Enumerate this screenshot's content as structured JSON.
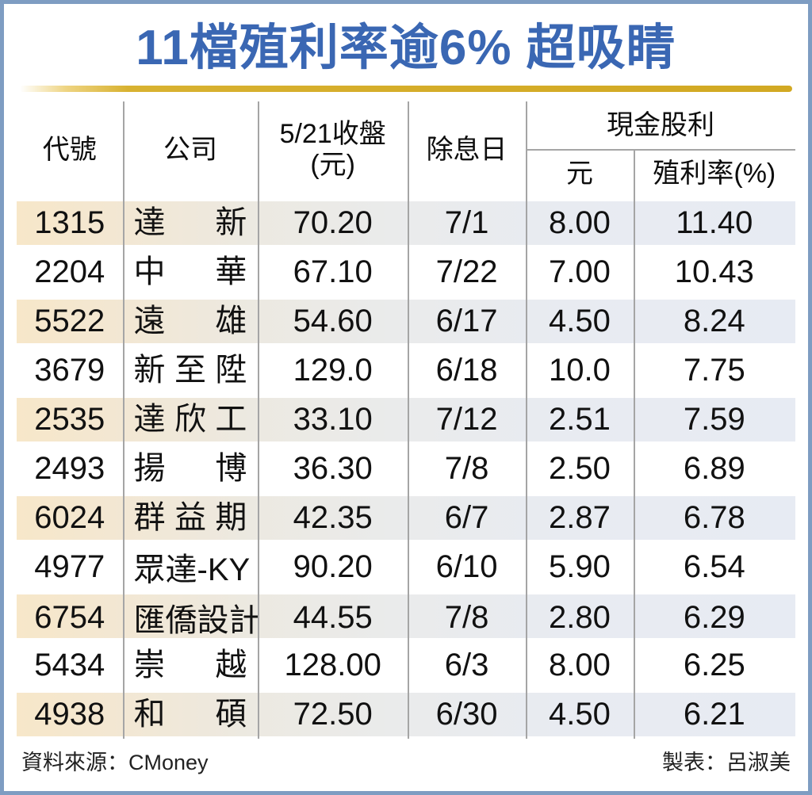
{
  "title": "11檔殖利率逾6% 超吸睛",
  "colors": {
    "title_blue": "#3a67b3",
    "gold_rule": "#d4ac28",
    "frame_border": "#7e9dc2",
    "shaded_row_left": "#f7e7c9",
    "shaded_row_right": "#e7ebf3",
    "grid_line": "#a5a5a5"
  },
  "table": {
    "headers": {
      "code": "代號",
      "company": "公司",
      "close_line1": "5/21收盤",
      "close_line2": "(元)",
      "ex_date": "除息日",
      "cash_dividend_group": "現金股利",
      "dividend_ntd": "元",
      "yield_pct": "殖利率(%)"
    },
    "rows": [
      {
        "code": "1315",
        "company": "達新",
        "close": "70.20",
        "ex_date": "7/1",
        "dividend": "8.00",
        "yield": "11.40"
      },
      {
        "code": "2204",
        "company": "中華",
        "close": "67.10",
        "ex_date": "7/22",
        "dividend": "7.00",
        "yield": "10.43"
      },
      {
        "code": "5522",
        "company": "遠雄",
        "close": "54.60",
        "ex_date": "6/17",
        "dividend": "4.50",
        "yield": "8.24"
      },
      {
        "code": "3679",
        "company": "新至陞",
        "close": "129.0",
        "ex_date": "6/18",
        "dividend": "10.0",
        "yield": "7.75"
      },
      {
        "code": "2535",
        "company": "達欣工",
        "close": "33.10",
        "ex_date": "7/12",
        "dividend": "2.51",
        "yield": "7.59"
      },
      {
        "code": "2493",
        "company": "揚博",
        "close": "36.30",
        "ex_date": "7/8",
        "dividend": "2.50",
        "yield": "6.89"
      },
      {
        "code": "6024",
        "company": "群益期",
        "close": "42.35",
        "ex_date": "6/7",
        "dividend": "2.87",
        "yield": "6.78"
      },
      {
        "code": "4977",
        "company": "眾達-KY",
        "close": "90.20",
        "ex_date": "6/10",
        "dividend": "5.90",
        "yield": "6.54"
      },
      {
        "code": "6754",
        "company": "匯僑設計",
        "close": "44.55",
        "ex_date": "7/8",
        "dividend": "2.80",
        "yield": "6.29"
      },
      {
        "code": "5434",
        "company": "崇越",
        "close": "128.00",
        "ex_date": "6/3",
        "dividend": "8.00",
        "yield": "6.25"
      },
      {
        "code": "4938",
        "company": "和碩",
        "close": "72.50",
        "ex_date": "6/30",
        "dividend": "4.50",
        "yield": "6.21"
      }
    ]
  },
  "footer": {
    "source": "資料來源：CMoney",
    "credit": "製表：呂淑美"
  }
}
